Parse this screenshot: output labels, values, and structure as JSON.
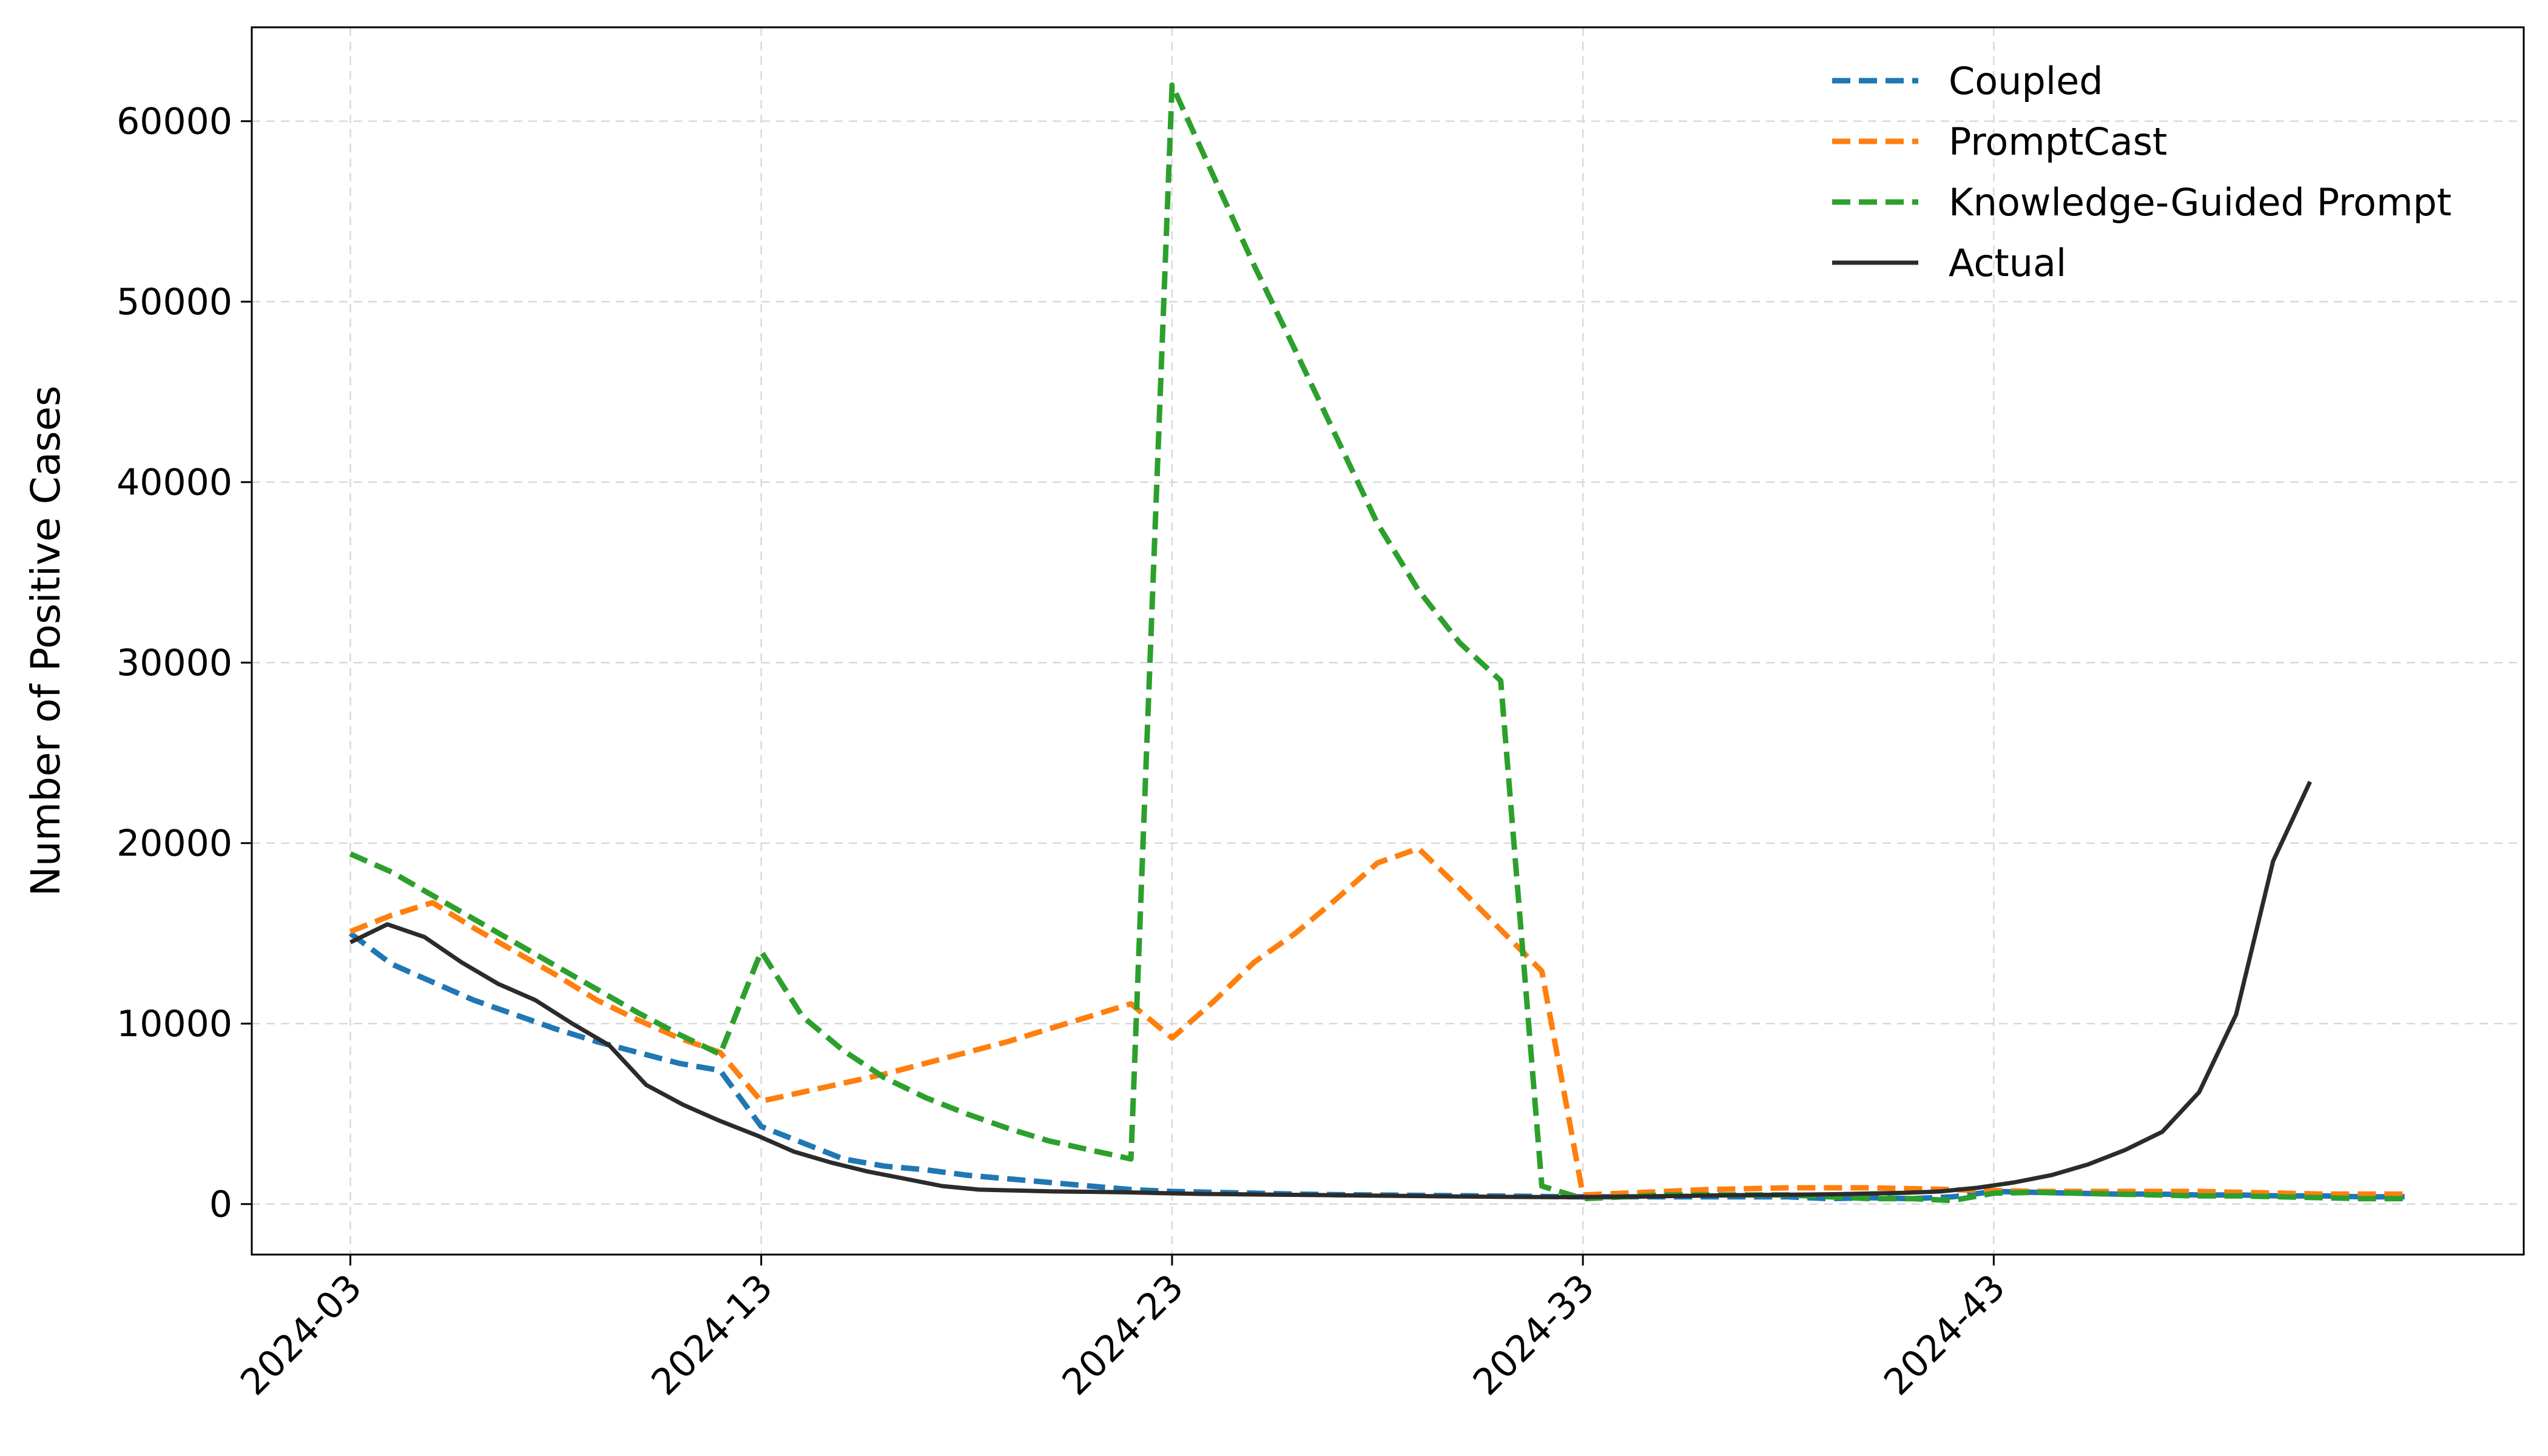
{
  "chart_data": {
    "type": "line",
    "title": "",
    "xlabel": "",
    "ylabel": "Number of Positive Cases",
    "x_start_week": "2024-03",
    "x_tick_labels": [
      "2024-03",
      "2024-13",
      "2024-23",
      "2024-33",
      "2024-43"
    ],
    "x_tick_weeks": [
      3,
      13,
      23,
      33,
      43
    ],
    "x_range_weeks": [
      0.6,
      55.9
    ],
    "y_ticks": [
      0,
      10000,
      20000,
      30000,
      40000,
      50000,
      60000
    ],
    "y_tick_labels": [
      "0",
      "10000",
      "20000",
      "30000",
      "40000",
      "50000",
      "60000"
    ],
    "ylim": [
      -2800,
      65200
    ],
    "grid": true,
    "legend_position": "top-right",
    "series": [
      {
        "name": "Coupled",
        "color": "#1f77b4",
        "dash": "dashed",
        "points": [
          [
            3,
            15000
          ],
          [
            4,
            13300
          ],
          [
            5,
            12300
          ],
          [
            6,
            11300
          ],
          [
            7,
            10500
          ],
          [
            8,
            9700
          ],
          [
            9,
            9000
          ],
          [
            10,
            8400
          ],
          [
            11,
            7800
          ],
          [
            12,
            7400
          ],
          [
            13,
            4300
          ],
          [
            14,
            3400
          ],
          [
            15,
            2500
          ],
          [
            16,
            2100
          ],
          [
            17,
            1900
          ],
          [
            18,
            1600
          ],
          [
            19,
            1400
          ],
          [
            20,
            1200
          ],
          [
            21,
            1000
          ],
          [
            22,
            800
          ],
          [
            23,
            700
          ],
          [
            24,
            650
          ],
          [
            25,
            600
          ],
          [
            26,
            550
          ],
          [
            27,
            520
          ],
          [
            28,
            500
          ],
          [
            29,
            480
          ],
          [
            30,
            460
          ],
          [
            31,
            440
          ],
          [
            32,
            420
          ],
          [
            33,
            400
          ],
          [
            34,
            400
          ],
          [
            35,
            400
          ],
          [
            36,
            400
          ],
          [
            37,
            400
          ],
          [
            38,
            400
          ],
          [
            39,
            300
          ],
          [
            40,
            350
          ],
          [
            41,
            300
          ],
          [
            42,
            400
          ],
          [
            43,
            700
          ],
          [
            44,
            650
          ],
          [
            45,
            600
          ],
          [
            46,
            550
          ],
          [
            47,
            550
          ],
          [
            48,
            500
          ],
          [
            49,
            500
          ],
          [
            50,
            450
          ],
          [
            51,
            450
          ],
          [
            52,
            400
          ],
          [
            53,
            400
          ]
        ]
      },
      {
        "name": "PromptCast",
        "color": "#ff7f0e",
        "dash": "dashed",
        "points": [
          [
            3,
            15100
          ],
          [
            4,
            16000
          ],
          [
            5,
            16700
          ],
          [
            6,
            15300
          ],
          [
            7,
            14000
          ],
          [
            8,
            12700
          ],
          [
            9,
            11300
          ],
          [
            10,
            10200
          ],
          [
            11,
            9200
          ],
          [
            12,
            8400
          ],
          [
            13,
            5700
          ],
          [
            14,
            6200
          ],
          [
            15,
            6700
          ],
          [
            16,
            7200
          ],
          [
            17,
            7800
          ],
          [
            18,
            8400
          ],
          [
            19,
            9000
          ],
          [
            20,
            9700
          ],
          [
            21,
            10400
          ],
          [
            22,
            11100
          ],
          [
            23,
            9200
          ],
          [
            24,
            11200
          ],
          [
            25,
            13400
          ],
          [
            26,
            15000
          ],
          [
            27,
            16900
          ],
          [
            28,
            18900
          ],
          [
            29,
            19700
          ],
          [
            30,
            17500
          ],
          [
            31,
            15200
          ],
          [
            32,
            12900
          ],
          [
            33,
            500
          ],
          [
            34,
            600
          ],
          [
            35,
            700
          ],
          [
            36,
            800
          ],
          [
            37,
            850
          ],
          [
            38,
            900
          ],
          [
            39,
            900
          ],
          [
            40,
            900
          ],
          [
            41,
            850
          ],
          [
            42,
            800
          ],
          [
            43,
            750
          ],
          [
            44,
            700
          ],
          [
            45,
            700
          ],
          [
            46,
            700
          ],
          [
            47,
            700
          ],
          [
            48,
            700
          ],
          [
            49,
            650
          ],
          [
            50,
            600
          ],
          [
            51,
            550
          ],
          [
            52,
            550
          ],
          [
            53,
            550
          ]
        ]
      },
      {
        "name": "Knowledge-Guided Prompt",
        "color": "#2ca02c",
        "dash": "dashed",
        "points": [
          [
            3,
            19400
          ],
          [
            4,
            18400
          ],
          [
            5,
            17100
          ],
          [
            6,
            15800
          ],
          [
            7,
            14500
          ],
          [
            8,
            13200
          ],
          [
            9,
            11900
          ],
          [
            10,
            10600
          ],
          [
            11,
            9400
          ],
          [
            12,
            8300
          ],
          [
            13,
            14000
          ],
          [
            14,
            10400
          ],
          [
            15,
            8500
          ],
          [
            16,
            7000
          ],
          [
            17,
            5900
          ],
          [
            18,
            5000
          ],
          [
            19,
            4200
          ],
          [
            20,
            3500
          ],
          [
            21,
            3000
          ],
          [
            22,
            2500
          ],
          [
            23,
            62000
          ],
          [
            24,
            57000
          ],
          [
            25,
            52000
          ],
          [
            26,
            47300
          ],
          [
            27,
            42500
          ],
          [
            28,
            37700
          ],
          [
            29,
            34000
          ],
          [
            30,
            31100
          ],
          [
            31,
            29000
          ],
          [
            32,
            1000
          ],
          [
            33,
            300
          ],
          [
            34,
            400
          ],
          [
            35,
            500
          ],
          [
            36,
            500
          ],
          [
            37,
            500
          ],
          [
            38,
            500
          ],
          [
            39,
            400
          ],
          [
            40,
            300
          ],
          [
            41,
            300
          ],
          [
            42,
            200
          ],
          [
            43,
            600
          ],
          [
            44,
            650
          ],
          [
            45,
            600
          ],
          [
            46,
            550
          ],
          [
            47,
            500
          ],
          [
            48,
            450
          ],
          [
            49,
            450
          ],
          [
            50,
            400
          ],
          [
            51,
            350
          ],
          [
            52,
            300
          ],
          [
            53,
            300
          ]
        ]
      },
      {
        "name": "Actual",
        "color": "#2b2b2b",
        "dash": "solid",
        "points": [
          [
            3,
            14500
          ],
          [
            3.9,
            15500
          ],
          [
            4.8,
            14800
          ],
          [
            5.7,
            13400
          ],
          [
            6.6,
            12200
          ],
          [
            7.5,
            11300
          ],
          [
            8.4,
            10000
          ],
          [
            9.3,
            8800
          ],
          [
            10.2,
            6600
          ],
          [
            11.1,
            5500
          ],
          [
            12,
            4600
          ],
          [
            12.9,
            3800
          ],
          [
            13.8,
            2900
          ],
          [
            14.7,
            2300
          ],
          [
            15.6,
            1800
          ],
          [
            16.5,
            1400
          ],
          [
            17.4,
            1000
          ],
          [
            18.3,
            800
          ],
          [
            19.2,
            750
          ],
          [
            20.1,
            700
          ],
          [
            21,
            680
          ],
          [
            21.9,
            650
          ],
          [
            22.8,
            600
          ],
          [
            23.7,
            560
          ],
          [
            24.6,
            540
          ],
          [
            25.5,
            520
          ],
          [
            26.4,
            500
          ],
          [
            27.3,
            480
          ],
          [
            28.2,
            460
          ],
          [
            29.1,
            440
          ],
          [
            30,
            420
          ],
          [
            30.9,
            400
          ],
          [
            31.8,
            390
          ],
          [
            32.7,
            380
          ],
          [
            33.6,
            400
          ],
          [
            34.5,
            420
          ],
          [
            35.4,
            450
          ],
          [
            36.3,
            480
          ],
          [
            37.2,
            500
          ],
          [
            38.1,
            520
          ],
          [
            39,
            540
          ],
          [
            39.9,
            580
          ],
          [
            40.8,
            620
          ],
          [
            41.7,
            700
          ],
          [
            42.6,
            900
          ],
          [
            43.5,
            1200
          ],
          [
            44.4,
            1600
          ],
          [
            45.3,
            2200
          ],
          [
            46.2,
            3000
          ],
          [
            47.1,
            4000
          ],
          [
            48,
            6200
          ],
          [
            48.9,
            10500
          ],
          [
            49.8,
            19000
          ],
          [
            50.7,
            23400
          ]
        ]
      }
    ]
  }
}
